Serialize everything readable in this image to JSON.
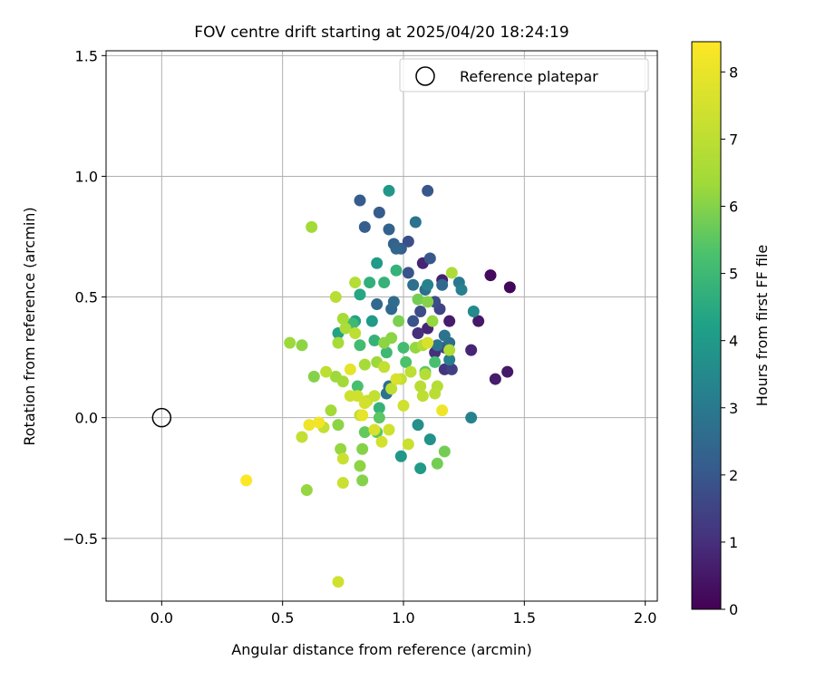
{
  "chart_data": {
    "type": "scatter",
    "title": "FOV centre drift starting at 2025/04/20 18:24:19",
    "xlabel": "Angular distance from reference (arcmin)",
    "ylabel": "Rotation from reference (arcmin)",
    "xlim": [
      -0.23,
      2.05
    ],
    "ylim": [
      -0.76,
      1.52
    ],
    "xticks": [
      0.0,
      0.5,
      1.0,
      1.5,
      2.0
    ],
    "xtick_labels": [
      "0.0",
      "0.5",
      "1.0",
      "1.5",
      "2.0"
    ],
    "yticks": [
      -0.5,
      0.0,
      0.5,
      1.0,
      1.5
    ],
    "ytick_labels": [
      "−0.5",
      "0.0",
      "0.5",
      "1.0",
      "1.5"
    ],
    "grid": true,
    "legend": {
      "placement": "top-right",
      "entries": [
        "Reference platepar"
      ]
    },
    "reference_point": {
      "x": 0.0,
      "y": 0.0
    },
    "colorbar": {
      "label": "Hours from first FF file",
      "min": 0,
      "max": 8.45,
      "ticks": [
        0,
        1,
        2,
        3,
        4,
        5,
        6,
        7,
        8
      ],
      "tick_labels": [
        "0",
        "1",
        "2",
        "3",
        "4",
        "5",
        "6",
        "7",
        "8"
      ],
      "colormap": "viridis"
    },
    "points": [
      [
        1.44,
        0.54,
        0.1
      ],
      [
        1.36,
        0.59,
        0.2
      ],
      [
        1.43,
        0.19,
        0.5
      ],
      [
        1.38,
        0.16,
        0.6
      ],
      [
        1.31,
        0.4,
        0.5
      ],
      [
        1.28,
        0.28,
        0.8
      ],
      [
        1.19,
        0.4,
        0.6
      ],
      [
        1.16,
        0.57,
        0.7
      ],
      [
        1.08,
        0.64,
        0.8
      ],
      [
        1.1,
        0.37,
        0.8
      ],
      [
        1.06,
        0.35,
        1.0
      ],
      [
        1.13,
        0.27,
        1.0
      ],
      [
        1.17,
        0.2,
        1.1
      ],
      [
        1.2,
        0.2,
        1.4
      ],
      [
        1.17,
        0.29,
        1.5
      ],
      [
        1.15,
        0.45,
        1.5
      ],
      [
        1.13,
        0.48,
        1.7
      ],
      [
        1.07,
        0.44,
        1.7
      ],
      [
        1.04,
        0.4,
        1.9
      ],
      [
        1.02,
        0.73,
        1.8
      ],
      [
        1.11,
        0.66,
        2.0
      ],
      [
        1.02,
        0.6,
        1.9
      ],
      [
        0.99,
        0.7,
        2.2
      ],
      [
        0.96,
        0.72,
        2.3
      ],
      [
        1.1,
        0.94,
        2.0
      ],
      [
        0.82,
        0.9,
        2.1
      ],
      [
        0.84,
        0.79,
        2.2
      ],
      [
        0.9,
        0.85,
        2.1
      ],
      [
        0.94,
        0.78,
        2.3
      ],
      [
        0.97,
        0.7,
        2.4
      ],
      [
        1.05,
        0.81,
        2.8
      ],
      [
        1.16,
        0.55,
        2.5
      ],
      [
        1.09,
        0.53,
        2.7
      ],
      [
        1.04,
        0.55,
        2.7
      ],
      [
        0.95,
        0.45,
        2.5
      ],
      [
        0.89,
        0.47,
        2.5
      ],
      [
        0.96,
        0.48,
        2.6
      ],
      [
        1.19,
        0.31,
        2.6
      ],
      [
        1.14,
        0.3,
        2.8
      ],
      [
        1.17,
        0.34,
        2.8
      ],
      [
        0.94,
        0.13,
        2.7
      ],
      [
        0.93,
        0.1,
        2.8
      ],
      [
        1.23,
        0.56,
        3.0
      ],
      [
        1.24,
        0.53,
        3.2
      ],
      [
        1.1,
        0.55,
        3.3
      ],
      [
        1.29,
        0.44,
        3.5
      ],
      [
        1.19,
        0.24,
        3.1
      ],
      [
        1.28,
        0.0,
        3.3
      ],
      [
        1.06,
        -0.03,
        3.7
      ],
      [
        1.11,
        -0.09,
        3.8
      ],
      [
        1.07,
        -0.21,
        4.0
      ],
      [
        0.99,
        -0.16,
        3.9
      ],
      [
        0.94,
        0.94,
        3.9
      ],
      [
        0.89,
        0.64,
        4.0
      ],
      [
        0.87,
        0.4,
        4.0
      ],
      [
        0.8,
        0.4,
        4.3
      ],
      [
        0.73,
        0.35,
        4.3
      ],
      [
        0.82,
        0.51,
        4.4
      ],
      [
        0.86,
        0.56,
        4.7
      ],
      [
        0.92,
        0.56,
        4.8
      ],
      [
        0.97,
        0.61,
        4.8
      ],
      [
        0.88,
        0.32,
        4.8
      ],
      [
        0.82,
        0.3,
        5.1
      ],
      [
        0.79,
        0.39,
        5.0
      ],
      [
        0.81,
        0.13,
        5.2
      ],
      [
        0.9,
        0.04,
        4.8
      ],
      [
        0.93,
        0.27,
        5.0
      ],
      [
        1.0,
        0.29,
        5.1
      ],
      [
        1.13,
        0.23,
        5.2
      ],
      [
        1.09,
        0.19,
        5.5
      ],
      [
        1.01,
        0.23,
        5.3
      ],
      [
        0.89,
        -0.06,
        5.5
      ],
      [
        0.84,
        -0.06,
        5.6
      ],
      [
        0.9,
        0.0,
        5.5
      ],
      [
        1.17,
        -0.14,
        5.8
      ],
      [
        1.14,
        -0.19,
        5.8
      ],
      [
        0.83,
        -0.13,
        6.0
      ],
      [
        0.83,
        -0.26,
        6.0
      ],
      [
        0.82,
        -0.2,
        6.1
      ],
      [
        0.73,
        -0.03,
        6.1
      ],
      [
        0.74,
        -0.13,
        6.2
      ],
      [
        0.6,
        -0.3,
        6.2
      ],
      [
        0.58,
        0.3,
        6.1
      ],
      [
        0.53,
        0.31,
        6.3
      ],
      [
        0.63,
        0.17,
        6.0
      ],
      [
        0.72,
        0.17,
        6.3
      ],
      [
        0.75,
        0.15,
        6.4
      ],
      [
        0.7,
        0.03,
        6.4
      ],
      [
        0.62,
        0.79,
        6.4
      ],
      [
        0.73,
        0.31,
        6.5
      ],
      [
        0.75,
        0.41,
        6.5
      ],
      [
        0.76,
        0.37,
        6.6
      ],
      [
        0.84,
        0.22,
        6.5
      ],
      [
        0.89,
        0.23,
        6.3
      ],
      [
        0.92,
        0.31,
        6.1
      ],
      [
        0.95,
        0.33,
        6.1
      ],
      [
        0.98,
        0.4,
        5.9
      ],
      [
        1.06,
        0.49,
        5.8
      ],
      [
        1.1,
        0.48,
        6.0
      ],
      [
        1.12,
        0.4,
        6.2
      ],
      [
        1.05,
        0.29,
        6.2
      ],
      [
        1.2,
        0.6,
        6.6
      ],
      [
        1.19,
        0.28,
        6.7
      ],
      [
        1.08,
        0.3,
        6.7
      ],
      [
        1.14,
        0.13,
        6.8
      ],
      [
        1.09,
        0.18,
        6.8
      ],
      [
        1.13,
        0.1,
        6.9
      ],
      [
        1.07,
        0.13,
        6.9
      ],
      [
        1.08,
        0.09,
        7.0
      ],
      [
        1.03,
        0.19,
        7.0
      ],
      [
        0.99,
        0.16,
        7.1
      ],
      [
        0.95,
        0.12,
        7.0
      ],
      [
        0.92,
        0.21,
        7.1
      ],
      [
        0.88,
        0.09,
        7.1
      ],
      [
        0.85,
        0.07,
        7.2
      ],
      [
        0.82,
        0.01,
        7.0
      ],
      [
        0.8,
        0.35,
        7.0
      ],
      [
        0.8,
        0.56,
        6.8
      ],
      [
        0.72,
        0.5,
        6.9
      ],
      [
        0.68,
        0.19,
        7.0
      ],
      [
        0.67,
        -0.04,
        7.1
      ],
      [
        0.58,
        -0.08,
        7.1
      ],
      [
        0.75,
        -0.17,
        7.3
      ],
      [
        0.75,
        -0.27,
        7.3
      ],
      [
        0.73,
        -0.68,
        7.4
      ],
      [
        0.78,
        0.09,
        7.4
      ],
      [
        0.81,
        0.09,
        7.4
      ],
      [
        0.84,
        0.06,
        7.5
      ],
      [
        0.88,
        -0.05,
        7.6
      ],
      [
        0.91,
        -0.1,
        7.5
      ],
      [
        0.94,
        -0.05,
        7.4
      ],
      [
        1.0,
        0.05,
        7.4
      ],
      [
        1.02,
        -0.11,
        7.3
      ],
      [
        0.97,
        0.16,
        7.6
      ],
      [
        1.1,
        0.31,
        7.6
      ],
      [
        0.78,
        0.2,
        7.9
      ],
      [
        0.83,
        0.01,
        7.9
      ],
      [
        0.61,
        -0.03,
        8.1
      ],
      [
        0.65,
        -0.02,
        8.2
      ],
      [
        1.16,
        0.03,
        8.1
      ],
      [
        0.35,
        -0.26,
        8.4
      ]
    ]
  }
}
